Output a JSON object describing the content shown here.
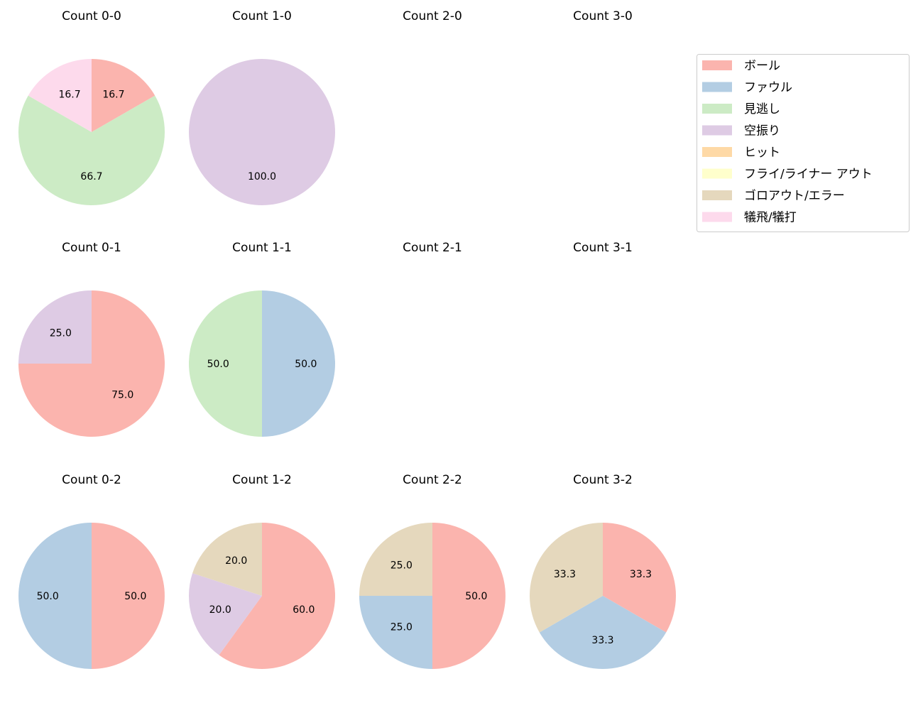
{
  "colors": {
    "ボール": "#fbb4ae",
    "ファウル": "#b3cde3",
    "見逃し": "#ccebc5",
    "空振り": "#decbe4",
    "ヒット": "#fed9a6",
    "フライ/ライナー アウト": "#ffffcc",
    "ゴロアウト/エラー": "#e5d8bd",
    "犠飛/犠打": "#fddaec"
  },
  "chart_data": {
    "type": "pie",
    "start_angle": 90,
    "direction": "clockwise",
    "legend": {
      "placement": "top-right",
      "entries": [
        "ボール",
        "ファウル",
        "見逃し",
        "空振り",
        "ヒット",
        "フライ/ライナー アウト",
        "ゴロアウト/エラー",
        "犠飛/犠打"
      ]
    },
    "charts": [
      {
        "title": "Count 0-0",
        "row": 0,
        "col": 0,
        "slices": [
          {
            "label": "ボール",
            "value": 16.7
          },
          {
            "label": "見逃し",
            "value": 66.7
          },
          {
            "label": "犠飛/犠打",
            "value": 16.7
          }
        ]
      },
      {
        "title": "Count 1-0",
        "row": 0,
        "col": 1,
        "slices": [
          {
            "label": "空振り",
            "value": 100.0
          }
        ]
      },
      {
        "title": "Count 2-0",
        "row": 0,
        "col": 2,
        "slices": []
      },
      {
        "title": "Count 3-0",
        "row": 0,
        "col": 3,
        "slices": []
      },
      {
        "title": "Count 0-1",
        "row": 1,
        "col": 0,
        "slices": [
          {
            "label": "ボール",
            "value": 75.0
          },
          {
            "label": "空振り",
            "value": 25.0
          }
        ]
      },
      {
        "title": "Count 1-1",
        "row": 1,
        "col": 1,
        "slices": [
          {
            "label": "ファウル",
            "value": 50.0
          },
          {
            "label": "見逃し",
            "value": 50.0
          }
        ]
      },
      {
        "title": "Count 2-1",
        "row": 1,
        "col": 2,
        "slices": []
      },
      {
        "title": "Count 3-1",
        "row": 1,
        "col": 3,
        "slices": []
      },
      {
        "title": "Count 0-2",
        "row": 2,
        "col": 0,
        "slices": [
          {
            "label": "ボール",
            "value": 50.0
          },
          {
            "label": "ファウル",
            "value": 50.0
          }
        ]
      },
      {
        "title": "Count 1-2",
        "row": 2,
        "col": 1,
        "slices": [
          {
            "label": "ボール",
            "value": 60.0
          },
          {
            "label": "空振り",
            "value": 20.0
          },
          {
            "label": "ゴロアウト/エラー",
            "value": 20.0
          }
        ]
      },
      {
        "title": "Count 2-2",
        "row": 2,
        "col": 2,
        "slices": [
          {
            "label": "ボール",
            "value": 50.0
          },
          {
            "label": "ファウル",
            "value": 25.0
          },
          {
            "label": "ゴロアウト/エラー",
            "value": 25.0
          }
        ]
      },
      {
        "title": "Count 3-2",
        "row": 2,
        "col": 3,
        "slices": [
          {
            "label": "ボール",
            "value": 33.3
          },
          {
            "label": "ファウル",
            "value": 33.3
          },
          {
            "label": "ゴロアウト/エラー",
            "value": 33.3
          }
        ]
      }
    ]
  }
}
